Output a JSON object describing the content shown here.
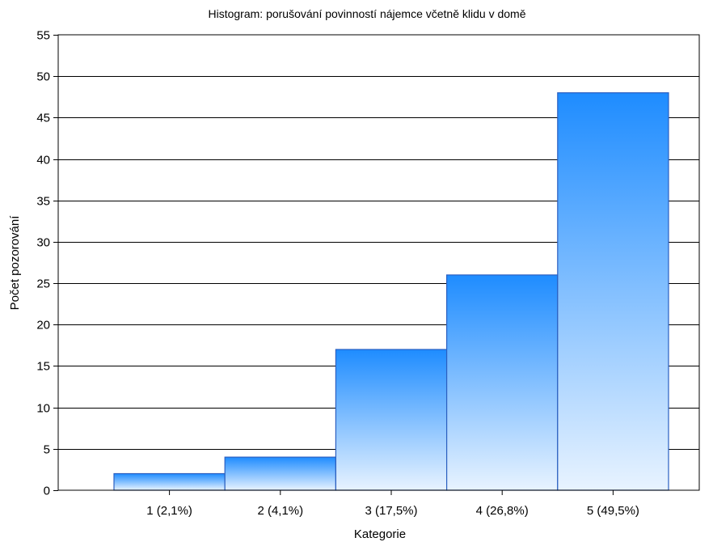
{
  "chart_data": {
    "type": "bar",
    "title": "Histogram: porušování povinností nájemce včetně klidu v domě",
    "xlabel": "Kategorie",
    "ylabel": "Počet pozorování",
    "categories": [
      "1 (2,1%)",
      "2 (4,1%)",
      "3 (17,5%)",
      "4 (26,8%)",
      "5 (49,5%)"
    ],
    "values": [
      2,
      4,
      17,
      26,
      48
    ],
    "ylim": [
      0,
      55
    ],
    "yticks": [
      0,
      5,
      10,
      15,
      20,
      25,
      30,
      35,
      40,
      45,
      50,
      55
    ],
    "grid": true,
    "legend": "none",
    "colors": {
      "bar_top": "#1e8cff",
      "bar_bottom": "#e8f3ff",
      "bar_stroke": "#2a5fc0",
      "grid": "#000000"
    }
  }
}
